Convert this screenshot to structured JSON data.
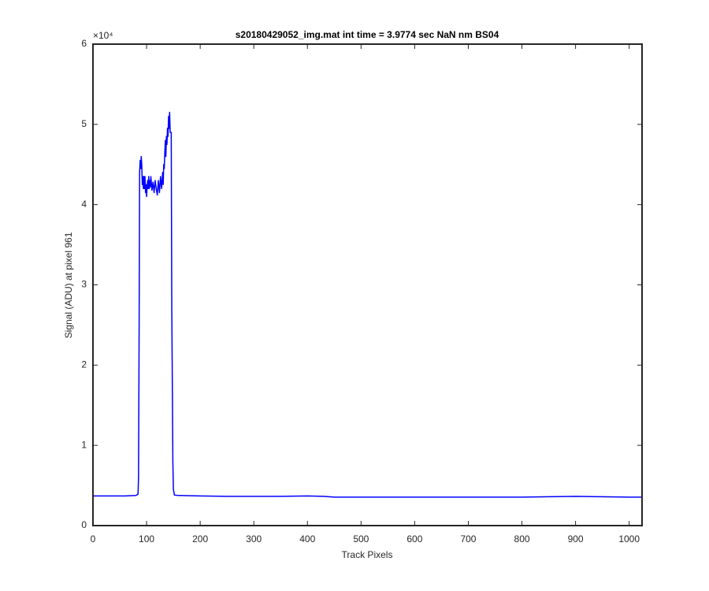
{
  "chart_data": {
    "type": "line",
    "title": "s20180429052_img.mat int time = 3.9774 sec  NaN nm BS04",
    "x_label": "Track Pixels",
    "y_label": "Signal (ADU) at pixel 961",
    "y_exponent": "×10⁴",
    "color": "#0000ff",
    "x": [
      0,
      20,
      40,
      60,
      80,
      84,
      85,
      86,
      87,
      88,
      89,
      90,
      91,
      92,
      93,
      94,
      95,
      96,
      97,
      98,
      99,
      100,
      101,
      102,
      103,
      104,
      105,
      106,
      107,
      108,
      110,
      112,
      114,
      116,
      118,
      120,
      122,
      124,
      126,
      128,
      130,
      131,
      132,
      133,
      134,
      135,
      136,
      137,
      138,
      139,
      140,
      141,
      142,
      143,
      144,
      146,
      147,
      148,
      149,
      150,
      152,
      160,
      200,
      250,
      300,
      350,
      400,
      430,
      450,
      500,
      600,
      700,
      800,
      850,
      900,
      950,
      1000,
      1024
    ],
    "values": [
      3700,
      3700,
      3700,
      3700,
      3750,
      3900,
      6000,
      23000,
      44000,
      45500,
      44500,
      46000,
      45000,
      42500,
      43500,
      42000,
      43500,
      42000,
      43500,
      41500,
      42500,
      41000,
      42200,
      43000,
      42000,
      43500,
      42000,
      43000,
      42200,
      43500,
      41800,
      42800,
      41500,
      43000,
      42000,
      41200,
      43000,
      41500,
      43500,
      42000,
      44000,
      42500,
      45000,
      44500,
      46500,
      48000,
      46000,
      48500,
      47500,
      49500,
      48500,
      51000,
      49500,
      51500,
      49000,
      49000,
      27000,
      18000,
      8000,
      4500,
      3800,
      3750,
      3700,
      3650,
      3650,
      3650,
      3700,
      3650,
      3550,
      3550,
      3550,
      3550,
      3550,
      3600,
      3650,
      3600,
      3550,
      3550
    ],
    "xlim": [
      0,
      1024
    ],
    "ylim": [
      0,
      60000
    ],
    "xticks": [
      0,
      100,
      200,
      300,
      400,
      500,
      600,
      700,
      800,
      900,
      1000
    ],
    "yticks": [
      {
        "value": 0,
        "label": "0"
      },
      {
        "value": 10000,
        "label": "1"
      },
      {
        "value": 20000,
        "label": "2"
      },
      {
        "value": 30000,
        "label": "3"
      },
      {
        "value": 40000,
        "label": "4"
      },
      {
        "value": 50000,
        "label": "5"
      },
      {
        "value": 60000,
        "label": "6"
      }
    ],
    "grid": false
  }
}
